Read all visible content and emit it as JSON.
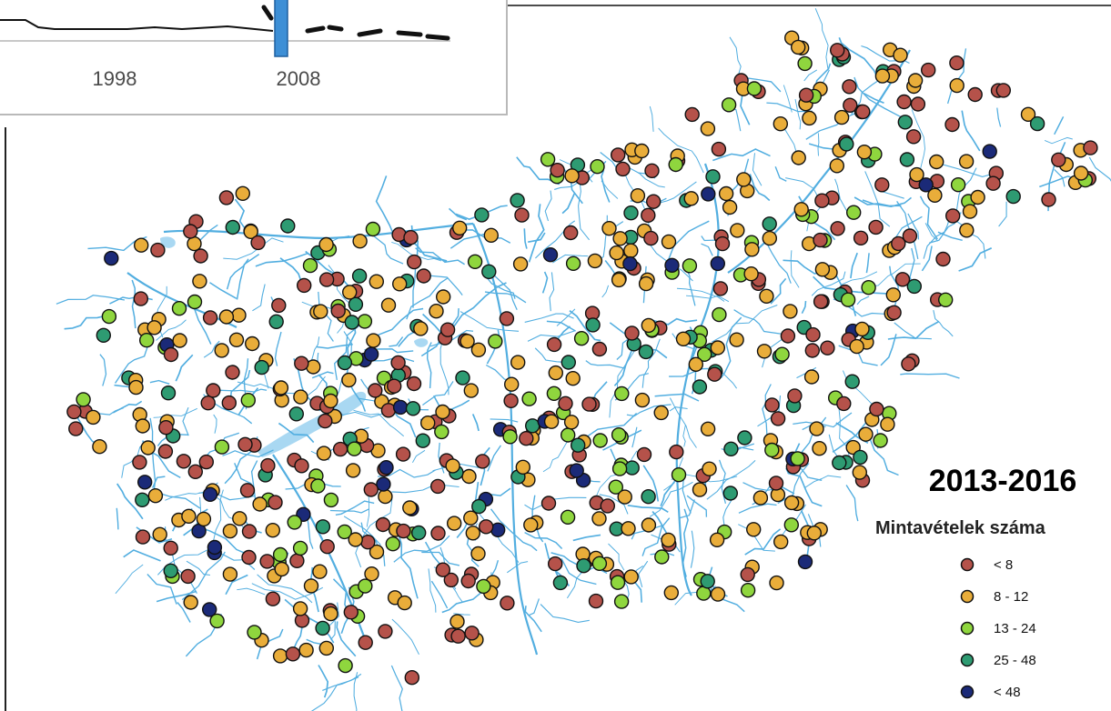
{
  "inset": {
    "tick_labels": [
      "1998",
      "2008"
    ],
    "highlight_color": "#3d8fd6"
  },
  "map": {
    "period_title": "2013-2016",
    "river_color": "#52aee0",
    "lake_color": "#a9d8f2"
  },
  "legend": {
    "title": "Mintavételek száma",
    "items": [
      {
        "label": "< 8",
        "color": "#b5524a"
      },
      {
        "label": "8 - 12",
        "color": "#e9ad3a"
      },
      {
        "label": "13 - 24",
        "color": "#8fd63e"
      },
      {
        "label": "25 - 48",
        "color": "#2e9b72"
      },
      {
        "label": "< 48",
        "color": "#1b2a78"
      }
    ]
  }
}
